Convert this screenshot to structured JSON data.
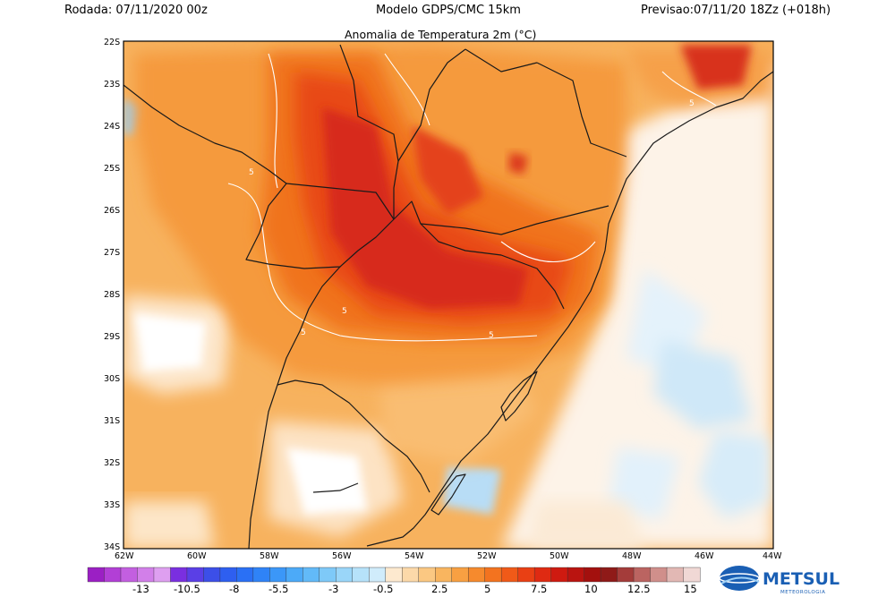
{
  "header": {
    "run_label": "Rodada: 07/11/2020 00z",
    "model_label": "Modelo GDPS/CMC 15km",
    "forecast_label": "Previsao:07/11/20 18Zz (+018h)",
    "map_title": "Anomalia de Temperatura 2m (°C)"
  },
  "map": {
    "lat_labels": [
      "22S",
      "23S",
      "24S",
      "25S",
      "26S",
      "27S",
      "28S",
      "29S",
      "30S",
      "31S",
      "32S",
      "33S",
      "34S"
    ],
    "lon_labels": [
      "62W",
      "60W",
      "58W",
      "56W",
      "54W",
      "52W",
      "50W",
      "48W",
      "46W",
      "44W"
    ],
    "contour_labels": [
      "5",
      "5",
      "5",
      "5",
      "5"
    ]
  },
  "colorbar": {
    "tick_labels": [
      "-13",
      "-10.5",
      "-8",
      "-5.5",
      "-3",
      "-0.5",
      "2.5",
      "5",
      "7.5",
      "10",
      "12.5",
      "15"
    ],
    "colors": [
      "#9b1fc4",
      "#b23fd6",
      "#c35fe0",
      "#d27fe9",
      "#de9ff0",
      "#7a2fe0",
      "#5a3fe6",
      "#3c4fe8",
      "#2e5ff0",
      "#2a70f5",
      "#2f83f7",
      "#3b97f8",
      "#4caaf8",
      "#62baf8",
      "#7ec9f8",
      "#9ad6f9",
      "#b6e2fa",
      "#d0ecfb",
      "#fde9cf",
      "#fcd9a9",
      "#fbc882",
      "#f9b55f",
      "#f8a042",
      "#f68a2d",
      "#f3731f",
      "#f05a18",
      "#e94014",
      "#df2a12",
      "#cf1a10",
      "#ba1410",
      "#a3100e",
      "#8f1a18",
      "#a43c3a",
      "#bb6461",
      "#d08f8b",
      "#e2b8b4",
      "#f0d8d5"
    ]
  },
  "logo": {
    "brand": "METSUL",
    "tagline": "METEOROLOGIA",
    "brand_color": "#1a5fb4"
  }
}
